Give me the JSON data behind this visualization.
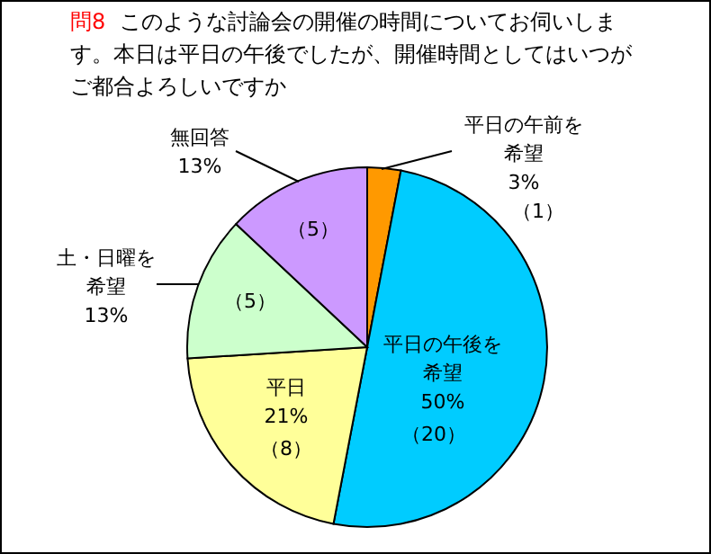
{
  "chart_data": {
    "type": "pie",
    "title": "問8",
    "subtitle": "このような討論会の開催の時間についてお伺いします。本日は平日の午後でしたが、開催時間としてはいつがご都合よろしいですか",
    "categories": [
      "平日の午前を希望",
      "平日の午後を希望",
      "平日",
      "土・日曜を希望",
      "無回答"
    ],
    "values": [
      3,
      50,
      21,
      13,
      13
    ],
    "value_labels": [
      "3%",
      "50%",
      "21%",
      "13%",
      "13%"
    ],
    "annotations": [
      "（1）",
      "（20）",
      "（8）",
      "（5）",
      "（5）"
    ],
    "colors": [
      "#ff9900",
      "#00ccff",
      "#ffff99",
      "#ccffcc",
      "#cc99ff"
    ]
  }
}
